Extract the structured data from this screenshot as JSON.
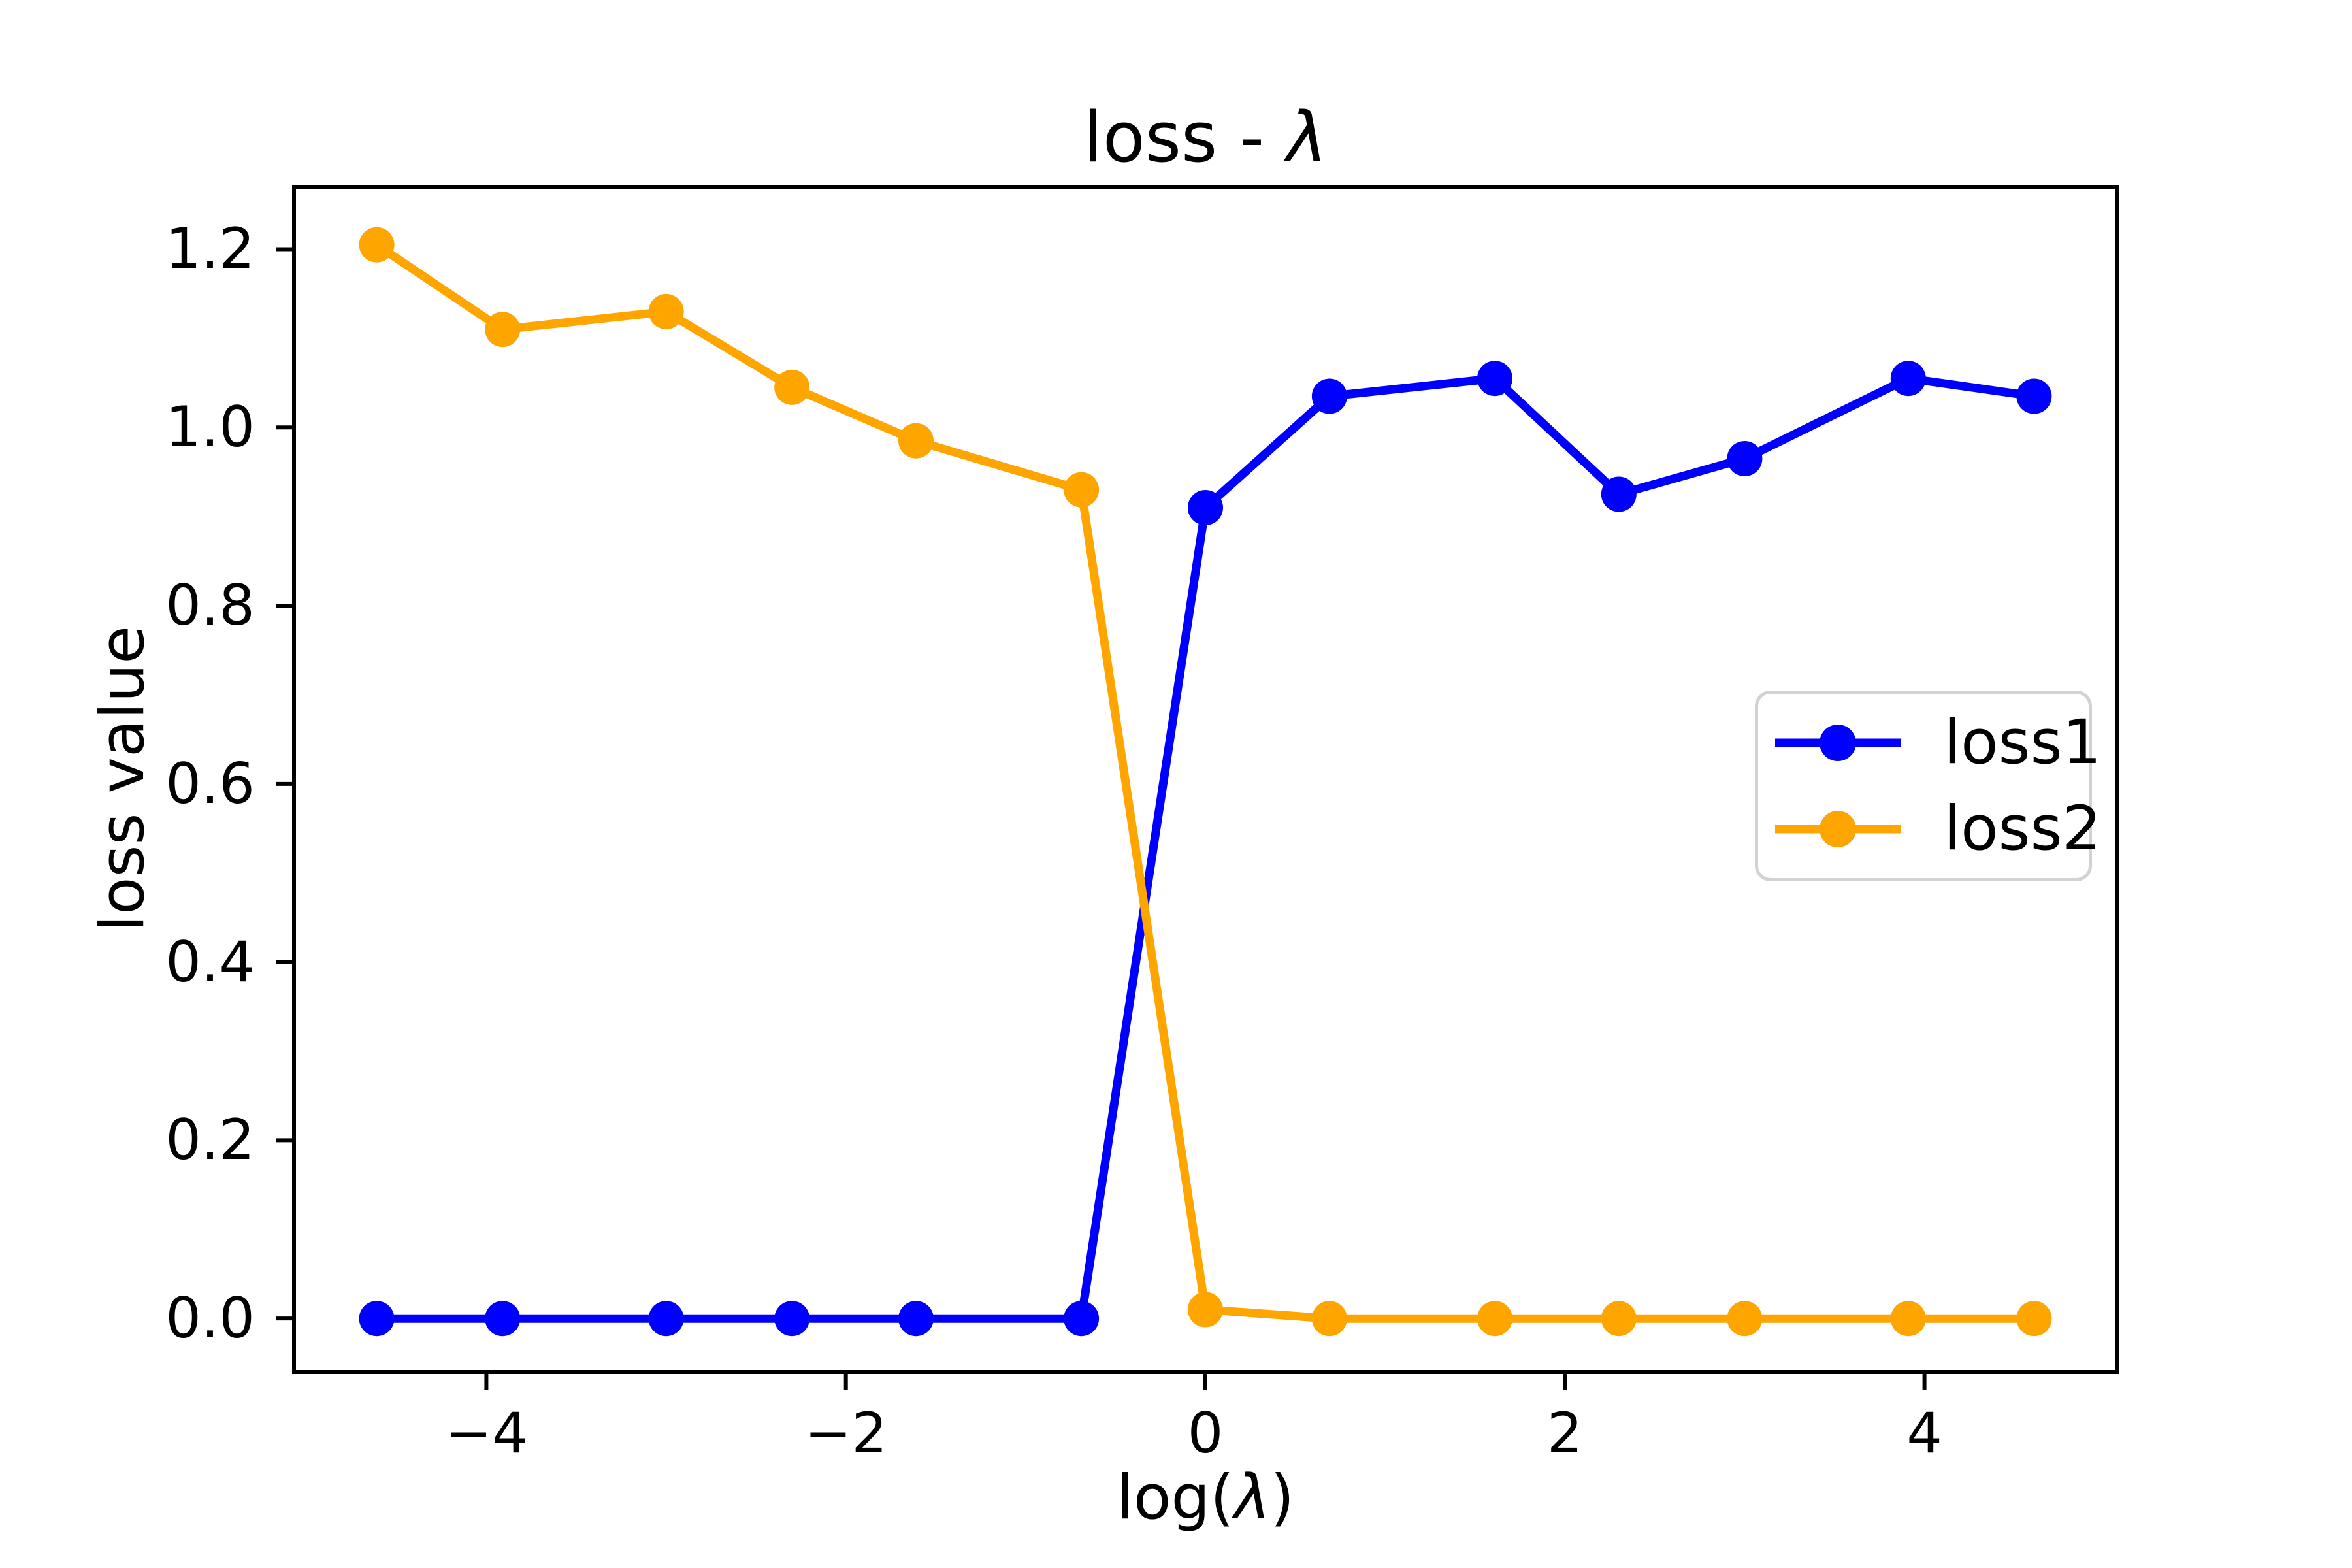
{
  "figure": {
    "background": "#ffffff",
    "frame_color": "#000000"
  },
  "chart_data": {
    "type": "line",
    "title_parts": {
      "prefix": "loss - ",
      "symbol": "λ"
    },
    "xlabel_parts": {
      "prefix": "log(",
      "symbol": "λ",
      "suffix": ")"
    },
    "ylabel": "loss value",
    "x": [
      -4.61,
      -3.91,
      -3.0,
      -2.3,
      -1.61,
      -0.69,
      0.0,
      0.69,
      1.61,
      2.3,
      3.0,
      3.91,
      4.61
    ],
    "series": [
      {
        "name": "loss1",
        "color": "#0000ff",
        "values": [
          0.0,
          0.0,
          0.0,
          0.0,
          0.0,
          0.0,
          0.91,
          1.035,
          1.055,
          0.925,
          0.965,
          1.055,
          1.035
        ]
      },
      {
        "name": "loss2",
        "color": "#ffa500",
        "values": [
          1.205,
          1.11,
          1.13,
          1.045,
          0.985,
          0.93,
          0.01,
          0.0,
          0.0,
          0.0,
          0.0,
          0.0,
          0.0
        ]
      }
    ],
    "xlim": [
      -5.07,
      5.07
    ],
    "ylim": [
      -0.06,
      1.27
    ],
    "x_ticks": {
      "values": [
        -4,
        -2,
        0,
        2,
        4
      ],
      "labels": [
        "−4",
        "−2",
        "0",
        "2",
        "4"
      ]
    },
    "y_ticks": {
      "values": [
        0.0,
        0.2,
        0.4,
        0.6,
        0.8,
        1.0,
        1.2
      ],
      "labels": [
        "0.0",
        "0.2",
        "0.4",
        "0.6",
        "0.8",
        "1.0",
        "1.2"
      ]
    },
    "legend": {
      "position": "center right",
      "entries": [
        "loss1",
        "loss2"
      ]
    },
    "grid": false,
    "marker": "o"
  }
}
